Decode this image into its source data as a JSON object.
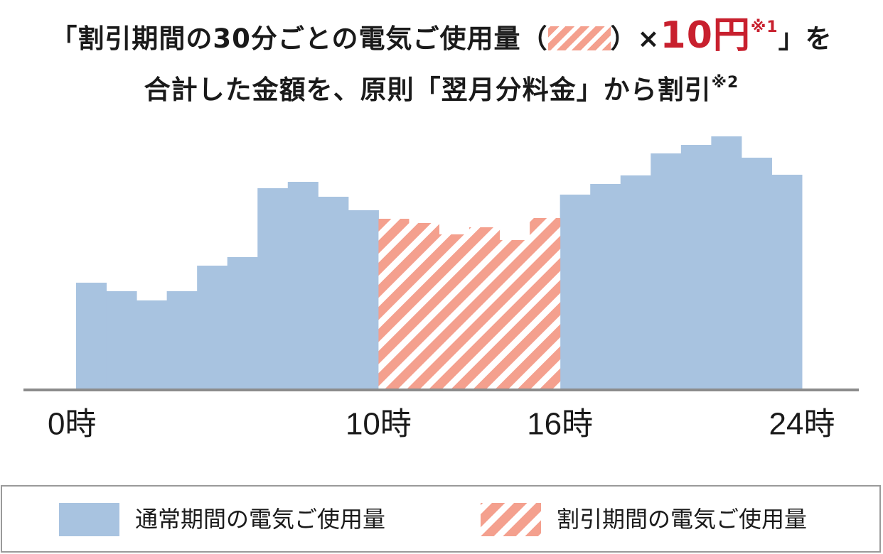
{
  "chart_data": {
    "type": "bar",
    "title": {
      "line1": [
        "「割引期間の30分ごとの電気ご使用量（",
        "）×",
        "10円",
        "※1",
        "」を"
      ],
      "line2": [
        "合計した金額を、原則「翌月分料金」から割引",
        "※2"
      ]
    },
    "x": [
      0,
      1,
      2,
      3,
      4,
      5,
      6,
      7,
      8,
      9,
      10,
      11,
      12,
      13,
      14,
      15,
      16,
      17,
      18,
      19,
      20,
      21,
      22,
      23
    ],
    "xlim": [
      0,
      24
    ],
    "xticks": [
      {
        "value": 0,
        "label": "0時"
      },
      {
        "value": 10,
        "label": "10時"
      },
      {
        "value": 16,
        "label": "16時"
      },
      {
        "value": 24,
        "label": "24時"
      }
    ],
    "ylim": [
      0,
      400
    ],
    "grid": false,
    "series": [
      {
        "name": "通常期間の電気ご使用量",
        "color": "#a8c3e0",
        "hatch": false,
        "values": [
          151,
          139,
          126,
          139,
          175,
          187,
          284,
          293,
          272,
          253,
          null,
          null,
          null,
          null,
          null,
          null,
          275,
          290,
          302,
          333,
          345,
          357,
          327,
          303
        ]
      },
      {
        "name": "割引期間の電気ご使用量",
        "color": "#f4a08e",
        "hatch": true,
        "values": [
          null,
          null,
          null,
          null,
          null,
          null,
          null,
          null,
          null,
          null,
          241,
          235,
          219,
          229,
          211,
          242,
          null,
          null,
          null,
          null,
          null,
          null,
          null,
          null
        ]
      }
    ]
  }
}
